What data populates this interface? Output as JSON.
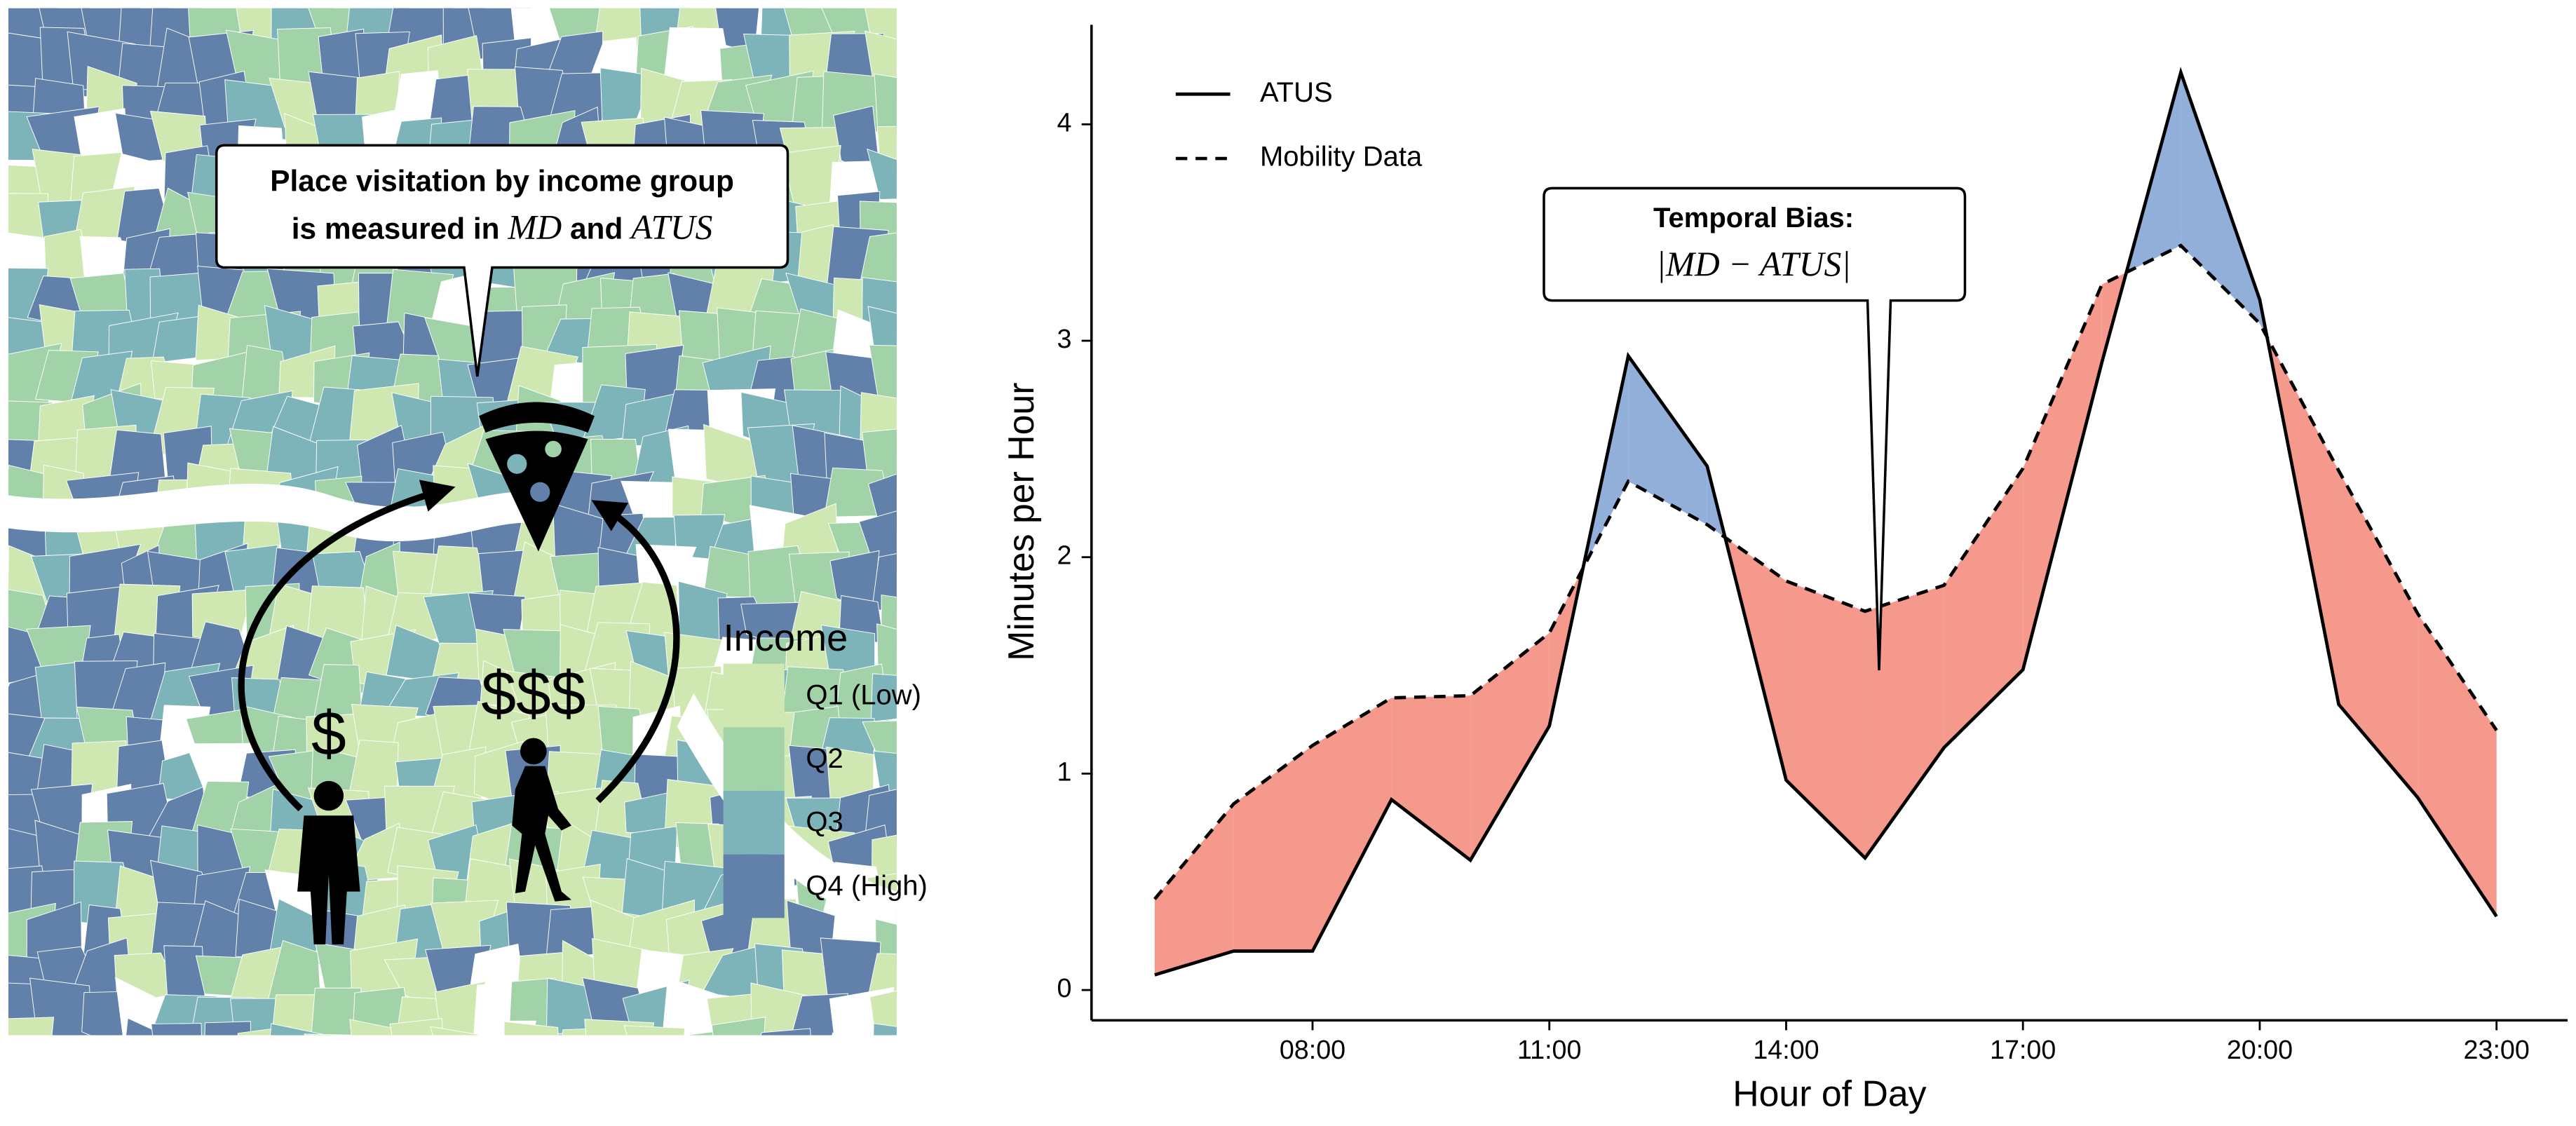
{
  "map_panel": {
    "callout": {
      "line1": "Place visitation by income group",
      "line2_prefix": "is measured in",
      "md": "MD",
      "conjunction": "and",
      "atus": "ATUS"
    },
    "low_income_label": "$",
    "high_income_label": "$$$",
    "legend": {
      "title": "Income",
      "items": [
        {
          "label": "Q1 (Low)",
          "color": "#cfe8b1"
        },
        {
          "label": "Q2",
          "color": "#a2d3a8"
        },
        {
          "label": "Q3",
          "color": "#7db4b9"
        },
        {
          "label": "Q4 (High)",
          "color": "#6180aa"
        }
      ]
    }
  },
  "chart_data": {
    "type": "line",
    "xlabel": "Hour of Day",
    "ylabel": "Minutes per Hour",
    "x": [
      6,
      7,
      8,
      9,
      10,
      11,
      12,
      13,
      14,
      15,
      16,
      17,
      18,
      19,
      20,
      21,
      22,
      23
    ],
    "series": [
      {
        "name": "ATUS",
        "color": "#000000",
        "dash": "solid",
        "values": [
          0.07,
          0.18,
          0.18,
          0.88,
          0.6,
          1.22,
          2.93,
          2.42,
          0.97,
          0.61,
          1.12,
          1.48,
          2.9,
          4.24,
          3.19,
          1.32,
          0.89,
          0.34
        ]
      },
      {
        "name": "Mobility Data",
        "color": "#000000",
        "dash": "dashed",
        "values": [
          0.42,
          0.86,
          1.13,
          1.35,
          1.36,
          1.65,
          2.35,
          2.15,
          1.89,
          1.75,
          1.87,
          2.41,
          3.26,
          3.44,
          3.08,
          2.4,
          1.74,
          1.2
        ]
      }
    ],
    "fill_between": {
      "above_color": "#92afd9",
      "below_color": "#f4998b"
    },
    "annotation": {
      "title": "Temporal Bias:",
      "formula": "|MD − ATUS|"
    },
    "legend": "top-left",
    "xlim": [
      5.2,
      23.9
    ],
    "ylim": [
      -0.14,
      4.46
    ],
    "xticks": [
      {
        "value": 8,
        "label": "08:00"
      },
      {
        "value": 11,
        "label": "11:00"
      },
      {
        "value": 14,
        "label": "14:00"
      },
      {
        "value": 17,
        "label": "17:00"
      },
      {
        "value": 20,
        "label": "20:00"
      },
      {
        "value": 23,
        "label": "23:00"
      }
    ],
    "yticks": [
      0,
      1,
      2,
      3,
      4
    ],
    "grid": false
  }
}
